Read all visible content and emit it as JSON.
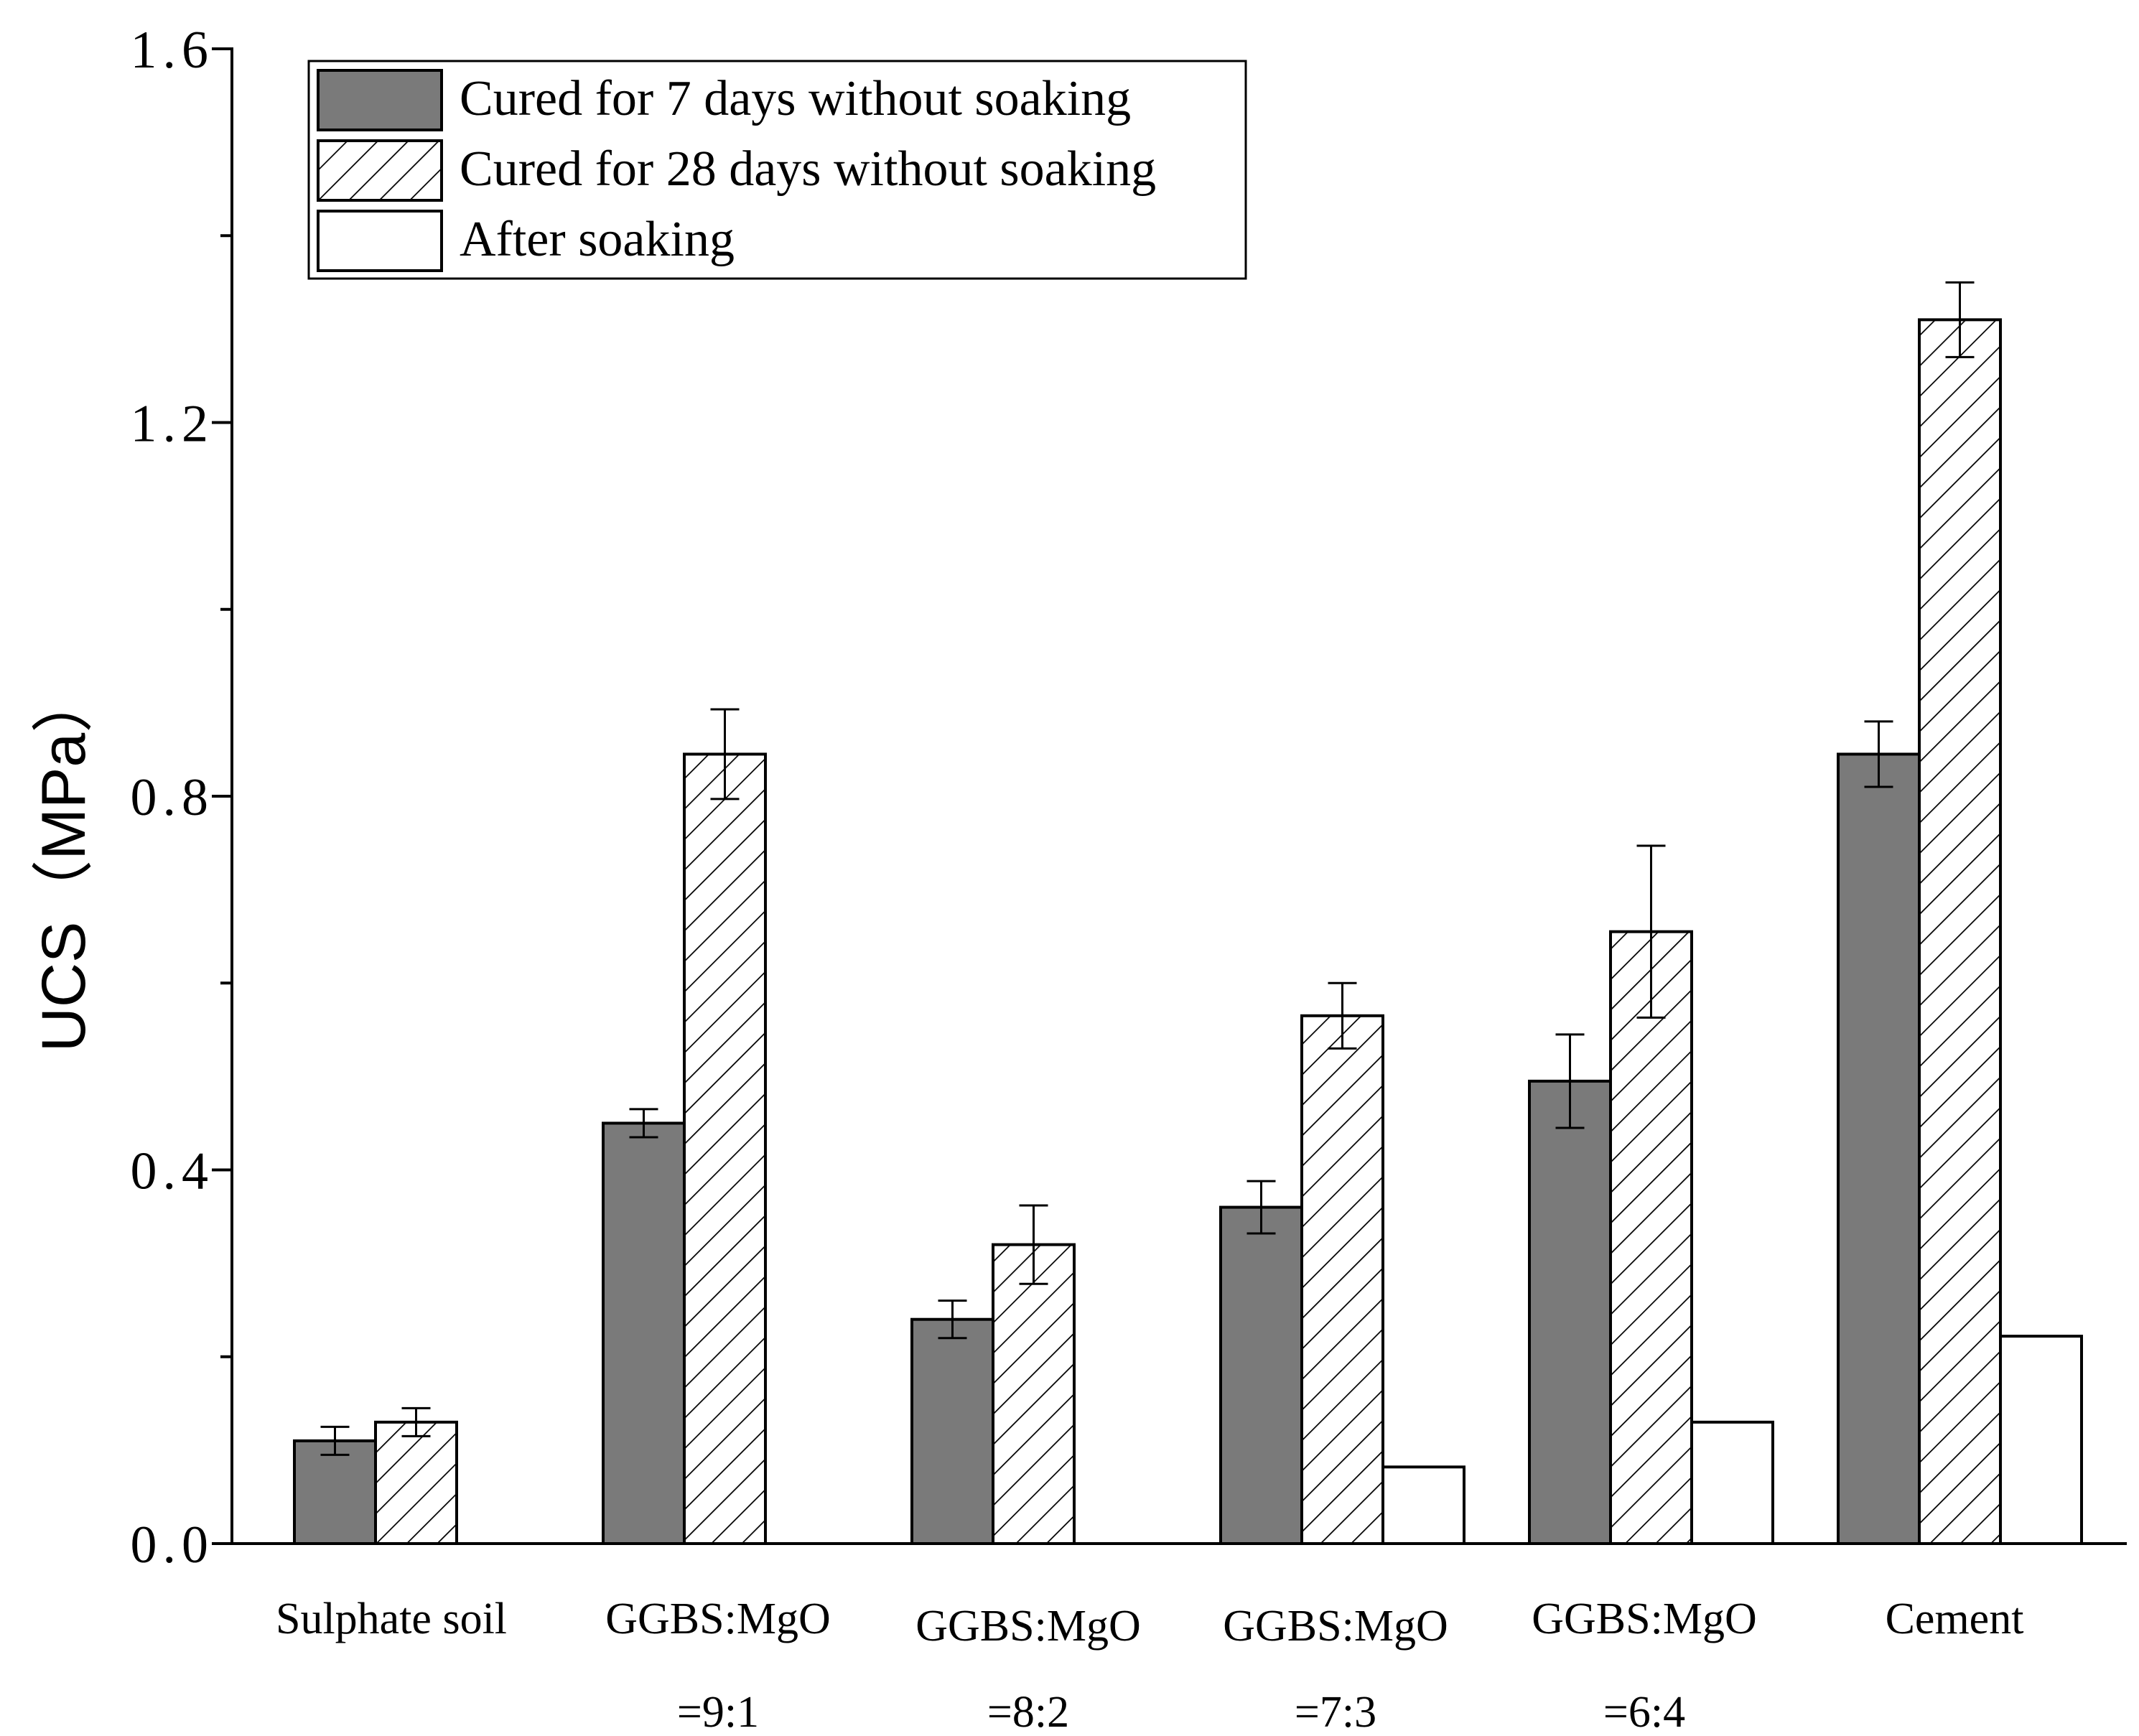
{
  "chart_data": {
    "type": "bar",
    "title": "",
    "xlabel": "",
    "ylabel": "UCS（MPa）",
    "ylim": [
      0,
      1.6
    ],
    "yticks": [
      "0.0",
      "0.4",
      "0.8",
      "1.2",
      "1.6"
    ],
    "categories": [
      [
        "Sulphate soil"
      ],
      [
        "GGBS:MgO",
        "=9:1"
      ],
      [
        "GGBS:MgO",
        "=8:2"
      ],
      [
        "GGBS:MgO",
        "=7:3"
      ],
      [
        "GGBS:MgO",
        "=6:4"
      ],
      [
        "Cement"
      ]
    ],
    "legend_position": "top-left",
    "grid": false,
    "series": [
      {
        "name": "Cured for 7 days without soaking",
        "fill": "#7a7a7a",
        "pattern": "solid",
        "values": [
          0.11,
          0.45,
          0.24,
          0.36,
          0.495,
          0.845
        ],
        "errors": [
          0.015,
          0.015,
          0.02,
          0.028,
          0.05,
          0.035
        ]
      },
      {
        "name": "Cured for 28 days without soaking",
        "fill": "#ffffff",
        "pattern": "hatch",
        "values": [
          0.13,
          0.845,
          0.32,
          0.565,
          0.655,
          1.31
        ],
        "errors": [
          0.015,
          0.048,
          0.042,
          0.035,
          0.092,
          0.04
        ]
      },
      {
        "name": "After soaking",
        "fill": "#ffffff",
        "pattern": "solid",
        "values": [
          null,
          null,
          null,
          0.082,
          0.13,
          0.222
        ],
        "errors": [
          null,
          null,
          null,
          null,
          null,
          null
        ]
      }
    ]
  }
}
